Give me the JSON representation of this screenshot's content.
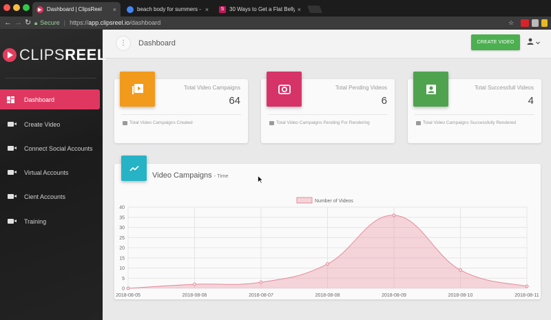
{
  "browser": {
    "tabs": [
      {
        "title": "Dashboard | ClipsReel",
        "favicon_color": "#e03760",
        "active": true
      },
      {
        "title": "beach body for summers - Go",
        "favicon_color": "#4285f4",
        "active": false
      },
      {
        "title": "30 Ways to Get a Flat Belly fo",
        "favicon_color": "#c2185b",
        "favicon_letter": "S",
        "active": false
      }
    ],
    "close_glyph": "×",
    "secure_label": "Secure",
    "url_prefix": "https://",
    "url_domain": "app.clipsreel.io",
    "url_path": "/dashboard"
  },
  "sidebar": {
    "brand_light": "CLIPS",
    "brand_bold": "REEL",
    "items": [
      {
        "label": "Dashboard",
        "icon": "dashboard-icon",
        "active": true
      },
      {
        "label": "Create Video",
        "icon": "video-camera-icon",
        "active": false
      },
      {
        "label": "Connect Social Accounts",
        "icon": "video-camera-icon",
        "active": false
      },
      {
        "label": "Virtual Accounts",
        "icon": "video-camera-icon",
        "active": false
      },
      {
        "label": "Cient Accounts",
        "icon": "video-camera-icon",
        "active": false
      },
      {
        "label": "Training",
        "icon": "video-camera-icon",
        "active": false
      }
    ]
  },
  "header": {
    "title": "Dashboard",
    "create_button": "CREATE VIDEO"
  },
  "stats": [
    {
      "label": "Total Video Campaigns",
      "value": "64",
      "footer": "Total Video Campaigns Created",
      "color": "#f29a1b",
      "icon": "video-library-icon"
    },
    {
      "label": "Total Pending Videos",
      "value": "6",
      "footer": "Total Video Campaigns Pending For Rendering",
      "color": "#d63468",
      "icon": "camera-icon"
    },
    {
      "label": "Total Successfull Videos",
      "value": "4",
      "footer": "Total Video Campaigns Successfully Rendered",
      "color": "#4fa34f",
      "icon": "portrait-icon"
    }
  ],
  "chart_card": {
    "title": "Video Campaigns",
    "subtitle": "- Time"
  },
  "chart_data": {
    "type": "area",
    "x": [
      "2018-08-05",
      "2018-08-06",
      "2018-08-07",
      "2018-08-08",
      "2018-08-09",
      "2018-08-10",
      "2018-08-11"
    ],
    "series": [
      {
        "name": "Number of Videos",
        "values": [
          0,
          2,
          3,
          12,
          36,
          9,
          1
        ]
      }
    ],
    "ylim": [
      0,
      40
    ],
    "yticks": [
      0,
      5,
      10,
      15,
      20,
      25,
      30,
      35,
      40
    ],
    "legend": "top-center",
    "grid": true,
    "colors": {
      "fill": "rgba(233,140,155,0.35)",
      "stroke": "#e58a9b"
    }
  }
}
